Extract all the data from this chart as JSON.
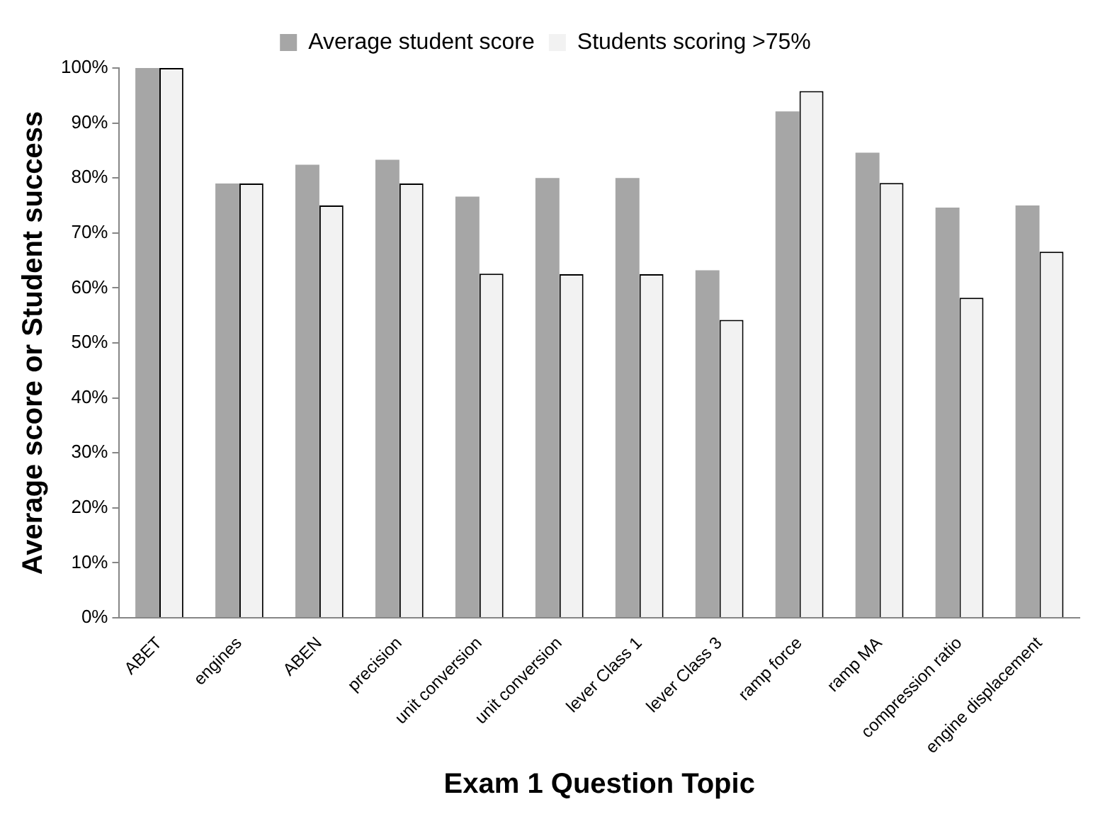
{
  "chart_data": {
    "type": "bar",
    "xlabel": "Exam 1 Question Topic",
    "ylabel": "Average score or Student success",
    "categories": [
      "ABET",
      "engines",
      "ABEN",
      "precision",
      "unit conversion",
      "unit conversion",
      "lever Class 1",
      "lever Class 3",
      "ramp force",
      "ramp MA",
      "compression ratio",
      "engine displacement"
    ],
    "series": [
      {
        "name": "Average student score",
        "color": "#a6a6a6",
        "values": [
          100,
          79,
          82.4,
          83.3,
          76.6,
          80,
          80,
          63.2,
          92.1,
          84.6,
          74.6,
          75
        ]
      },
      {
        "name": "Students scoring >75%",
        "color": "#f2f2f2",
        "values": [
          100,
          79,
          75,
          79,
          62.6,
          62.5,
          62.5,
          54.2,
          95.8,
          79.1,
          58.2,
          66.6
        ]
      }
    ],
    "ylim": [
      0,
      100
    ],
    "yticks": [
      {
        "value": 0,
        "label": "0%"
      },
      {
        "value": 10,
        "label": "10%"
      },
      {
        "value": 20,
        "label": "20%"
      },
      {
        "value": 30,
        "label": "30%"
      },
      {
        "value": 40,
        "label": "40%"
      },
      {
        "value": 50,
        "label": "50%"
      },
      {
        "value": 60,
        "label": "60%"
      },
      {
        "value": 70,
        "label": "70%"
      },
      {
        "value": 80,
        "label": "80%"
      },
      {
        "value": 90,
        "label": "90%"
      },
      {
        "value": 100,
        "label": "100%"
      }
    ],
    "grid": false,
    "legend": "top"
  }
}
